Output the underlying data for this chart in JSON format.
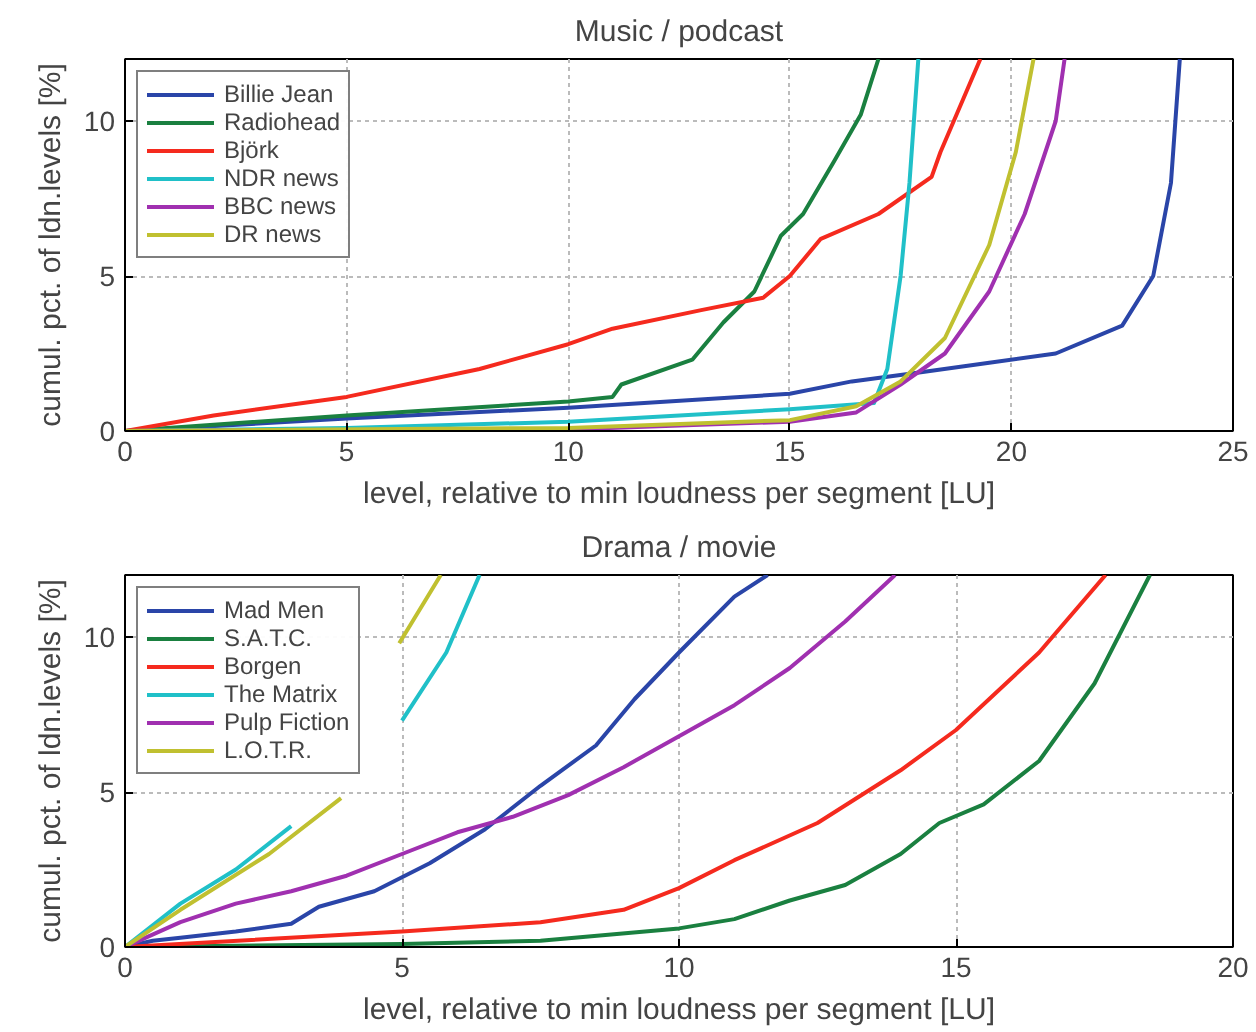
{
  "chart_data": [
    {
      "type": "line",
      "title": "Music / podcast",
      "xlabel": "level, relative to min loudness per segment [LU]",
      "ylabel": "cumul. pct. of ldn.levels [%]",
      "xlim": [
        0,
        25
      ],
      "ylim": [
        0,
        12
      ],
      "xticks": [
        0,
        5,
        10,
        15,
        20,
        25
      ],
      "yticks": [
        0,
        5,
        10
      ],
      "grid": true,
      "legend": "top left",
      "line_style": "solid",
      "series": [
        {
          "name": "Billie Jean",
          "color": "#2a45a8",
          "x": [
            0,
            5,
            10,
            15,
            16.4,
            18,
            19.5,
            21,
            22.5,
            23.2,
            23.6,
            23.8
          ],
          "values": [
            0,
            0.4,
            0.75,
            1.2,
            1.6,
            1.9,
            2.2,
            2.5,
            3.4,
            5,
            8,
            12
          ]
        },
        {
          "name": "Radiohead",
          "color": "#1a8040",
          "x": [
            0,
            5,
            10,
            11,
            11.2,
            12.8,
            13.5,
            14.2,
            14.8,
            15.3,
            16,
            16.6,
            17
          ],
          "values": [
            0,
            0.5,
            0.95,
            1.1,
            1.5,
            2.3,
            3.5,
            4.5,
            6.3,
            7,
            8.7,
            10.2,
            12
          ]
        },
        {
          "name": "Björk",
          "color": "#f52a1e",
          "x": [
            0,
            2,
            5,
            8,
            9,
            10,
            11,
            13,
            14.4,
            15,
            15.7,
            17,
            18.2,
            18.4,
            19,
            19.3
          ],
          "values": [
            0,
            0.5,
            1.1,
            2.0,
            2.4,
            2.8,
            3.3,
            3.9,
            4.3,
            5,
            6.2,
            7.0,
            8.2,
            9,
            11,
            12
          ]
        },
        {
          "name": "NDR news",
          "color": "#20c0c8",
          "x": [
            0,
            5,
            10,
            15,
            16.9,
            17.2,
            17.5,
            17.7,
            17.9
          ],
          "values": [
            0,
            0.1,
            0.3,
            0.7,
            0.9,
            2,
            5,
            8,
            12
          ]
        },
        {
          "name": "BBC news",
          "color": "#a030b0",
          "x": [
            0,
            10,
            15,
            16.5,
            17.5,
            18.5,
            19.5,
            20.3,
            21,
            21.2
          ],
          "values": [
            0,
            0.05,
            0.3,
            0.6,
            1.5,
            2.5,
            4.5,
            7,
            10,
            12
          ]
        },
        {
          "name": "DR news",
          "color": "#c0c030",
          "x": [
            0,
            10,
            15,
            16.5,
            17.5,
            18.5,
            19.5,
            20.1,
            20.5
          ],
          "values": [
            0,
            0.1,
            0.35,
            0.8,
            1.6,
            3,
            6,
            9,
            12
          ]
        }
      ]
    },
    {
      "type": "line",
      "title": "Drama / movie",
      "xlabel": "level, relative to min loudness per segment [LU]",
      "ylabel": "cumul. pct. of ldn.levels [%]",
      "xlim": [
        0,
        20
      ],
      "ylim": [
        0,
        12
      ],
      "xticks": [
        0,
        5,
        10,
        15,
        20
      ],
      "yticks": [
        0,
        5,
        10
      ],
      "grid": true,
      "legend": "top left",
      "line_style": "solid",
      "series": [
        {
          "name": "Mad Men",
          "color": "#2a45a8",
          "x": [
            0,
            0.5,
            1,
            2,
            3,
            3.5,
            4.5,
            5.5,
            6.5,
            7.5,
            8.5,
            9.2,
            10,
            11,
            11.6
          ],
          "values": [
            0,
            0.2,
            0.3,
            0.5,
            0.75,
            1.3,
            1.8,
            2.7,
            3.8,
            5.2,
            6.5,
            8,
            9.5,
            11.3,
            12
          ]
        },
        {
          "name": "S.A.T.C.",
          "color": "#1a8040",
          "x": [
            0,
            5,
            7.5,
            10,
            11,
            12,
            13,
            14,
            14.7,
            15.5,
            16.5,
            17.5,
            18.5
          ],
          "values": [
            0,
            0.1,
            0.2,
            0.6,
            0.9,
            1.5,
            2,
            3,
            4,
            4.6,
            6,
            8.5,
            12
          ]
        },
        {
          "name": "Borgen",
          "color": "#f52a1e",
          "x": [
            0,
            5,
            7.5,
            9,
            10,
            11,
            12.5,
            14,
            15,
            16.5,
            17.7
          ],
          "values": [
            0,
            0.5,
            0.8,
            1.2,
            1.9,
            2.8,
            4,
            5.7,
            7,
            9.5,
            12
          ]
        },
        {
          "name": "The Matrix",
          "color": "#20c0c8",
          "x": [
            0,
            0.5,
            1,
            2,
            3,
            4,
            5,
            5.8,
            6.4
          ],
          "values": [
            0,
            0.7,
            1.4,
            2.5,
            3.9,
            null,
            7.3,
            9.5,
            12
          ]
        },
        {
          "name": "Pulp Fiction",
          "color": "#a030b0",
          "x": [
            0,
            1,
            2,
            3,
            4,
            5,
            6,
            7,
            8,
            9,
            10,
            11,
            12,
            13,
            13.9
          ],
          "values": [
            0,
            0.8,
            1.4,
            1.8,
            2.3,
            3,
            3.7,
            4.2,
            4.9,
            5.8,
            6.8,
            7.8,
            9,
            10.5,
            12
          ]
        },
        {
          "name": "L.O.T.R.",
          "color": "#c0c030",
          "x": [
            0,
            1,
            2.6,
            3.9,
            4.65,
            4.95,
            5.7
          ],
          "values": [
            0,
            1.2,
            3,
            4.8,
            null,
            9.8,
            12
          ]
        }
      ]
    }
  ]
}
